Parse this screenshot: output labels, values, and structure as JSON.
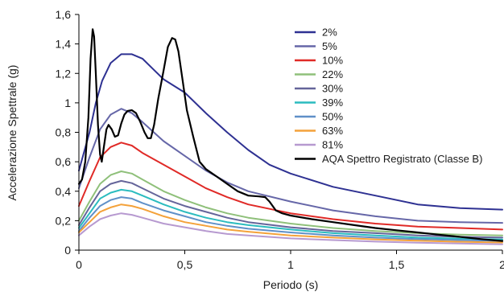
{
  "chart_data": {
    "type": "line",
    "title": "",
    "xlabel": "Periodo (s)",
    "ylabel": "Accelerazione Spettrale (g)",
    "xlim": [
      0,
      2
    ],
    "ylim": [
      0,
      1.6
    ],
    "xticks": [
      "0",
      "0,5",
      "1",
      "1,5",
      "2"
    ],
    "yticks": [
      "0",
      "0,2",
      "0,4",
      "0,6",
      "0,8",
      "1",
      "1,2",
      "1,4",
      "1,6"
    ],
    "xtick_values": [
      0,
      0.5,
      1,
      1.5,
      2
    ],
    "ytick_values": [
      0,
      0.2,
      0.4,
      0.6,
      0.8,
      1.0,
      1.2,
      1.4,
      1.6
    ],
    "grid": false,
    "legend_position": "top-right",
    "series": [
      {
        "name": "2%",
        "color": "#2e3192",
        "points": [
          [
            0,
            0.54
          ],
          [
            0.05,
            0.8
          ],
          [
            0.08,
            1.0
          ],
          [
            0.11,
            1.15
          ],
          [
            0.15,
            1.27
          ],
          [
            0.2,
            1.33
          ],
          [
            0.25,
            1.33
          ],
          [
            0.3,
            1.3
          ],
          [
            0.35,
            1.23
          ],
          [
            0.4,
            1.16
          ],
          [
            0.5,
            1.07
          ],
          [
            0.6,
            0.93
          ],
          [
            0.7,
            0.8
          ],
          [
            0.8,
            0.68
          ],
          [
            0.9,
            0.58
          ],
          [
            1.0,
            0.52
          ],
          [
            1.2,
            0.43
          ],
          [
            1.4,
            0.37
          ],
          [
            1.6,
            0.31
          ],
          [
            1.8,
            0.285
          ],
          [
            2.0,
            0.275
          ]
        ]
      },
      {
        "name": "5%",
        "color": "#6667a8",
        "points": [
          [
            0,
            0.42
          ],
          [
            0.05,
            0.63
          ],
          [
            0.1,
            0.82
          ],
          [
            0.15,
            0.92
          ],
          [
            0.2,
            0.96
          ],
          [
            0.25,
            0.93
          ],
          [
            0.3,
            0.87
          ],
          [
            0.4,
            0.74
          ],
          [
            0.5,
            0.64
          ],
          [
            0.6,
            0.54
          ],
          [
            0.7,
            0.46
          ],
          [
            0.8,
            0.4
          ],
          [
            1.0,
            0.33
          ],
          [
            1.2,
            0.27
          ],
          [
            1.4,
            0.23
          ],
          [
            1.6,
            0.2
          ],
          [
            1.8,
            0.19
          ],
          [
            2.0,
            0.185
          ]
        ]
      },
      {
        "name": "10%",
        "color": "#e02a27",
        "points": [
          [
            0,
            0.3
          ],
          [
            0.05,
            0.47
          ],
          [
            0.1,
            0.63
          ],
          [
            0.15,
            0.7
          ],
          [
            0.2,
            0.73
          ],
          [
            0.25,
            0.71
          ],
          [
            0.3,
            0.66
          ],
          [
            0.4,
            0.58
          ],
          [
            0.5,
            0.5
          ],
          [
            0.6,
            0.42
          ],
          [
            0.7,
            0.36
          ],
          [
            0.8,
            0.31
          ],
          [
            1.0,
            0.25
          ],
          [
            1.2,
            0.21
          ],
          [
            1.4,
            0.18
          ],
          [
            1.6,
            0.16
          ],
          [
            1.8,
            0.15
          ],
          [
            2.0,
            0.14
          ]
        ]
      },
      {
        "name": "22%",
        "color": "#8fc07a",
        "points": [
          [
            0,
            0.2
          ],
          [
            0.05,
            0.33
          ],
          [
            0.1,
            0.45
          ],
          [
            0.15,
            0.51
          ],
          [
            0.2,
            0.535
          ],
          [
            0.25,
            0.52
          ],
          [
            0.3,
            0.48
          ],
          [
            0.4,
            0.4
          ],
          [
            0.5,
            0.34
          ],
          [
            0.6,
            0.29
          ],
          [
            0.7,
            0.25
          ],
          [
            0.8,
            0.22
          ],
          [
            1.0,
            0.18
          ],
          [
            1.2,
            0.15
          ],
          [
            1.4,
            0.13
          ],
          [
            1.6,
            0.115
          ],
          [
            1.8,
            0.105
          ],
          [
            2.0,
            0.1
          ]
        ]
      },
      {
        "name": "30%",
        "color": "#65659a",
        "points": [
          [
            0,
            0.17
          ],
          [
            0.05,
            0.29
          ],
          [
            0.1,
            0.4
          ],
          [
            0.15,
            0.45
          ],
          [
            0.2,
            0.47
          ],
          [
            0.25,
            0.455
          ],
          [
            0.3,
            0.42
          ],
          [
            0.4,
            0.35
          ],
          [
            0.5,
            0.3
          ],
          [
            0.6,
            0.26
          ],
          [
            0.7,
            0.22
          ],
          [
            0.8,
            0.19
          ],
          [
            1.0,
            0.155
          ],
          [
            1.2,
            0.13
          ],
          [
            1.4,
            0.115
          ],
          [
            1.6,
            0.1
          ],
          [
            1.8,
            0.09
          ],
          [
            2.0,
            0.085
          ]
        ]
      },
      {
        "name": "39%",
        "color": "#2bbcbf",
        "points": [
          [
            0,
            0.15
          ],
          [
            0.05,
            0.25
          ],
          [
            0.1,
            0.35
          ],
          [
            0.15,
            0.39
          ],
          [
            0.2,
            0.41
          ],
          [
            0.25,
            0.4
          ],
          [
            0.3,
            0.37
          ],
          [
            0.4,
            0.31
          ],
          [
            0.5,
            0.26
          ],
          [
            0.6,
            0.22
          ],
          [
            0.7,
            0.19
          ],
          [
            0.8,
            0.17
          ],
          [
            1.0,
            0.14
          ],
          [
            1.2,
            0.115
          ],
          [
            1.4,
            0.1
          ],
          [
            1.6,
            0.085
          ],
          [
            1.8,
            0.078
          ],
          [
            2.0,
            0.072
          ]
        ]
      },
      {
        "name": "50%",
        "color": "#5f90c8",
        "points": [
          [
            0,
            0.13
          ],
          [
            0.05,
            0.22
          ],
          [
            0.1,
            0.3
          ],
          [
            0.15,
            0.34
          ],
          [
            0.2,
            0.36
          ],
          [
            0.25,
            0.35
          ],
          [
            0.3,
            0.32
          ],
          [
            0.4,
            0.27
          ],
          [
            0.5,
            0.23
          ],
          [
            0.6,
            0.19
          ],
          [
            0.7,
            0.165
          ],
          [
            0.8,
            0.145
          ],
          [
            1.0,
            0.12
          ],
          [
            1.2,
            0.1
          ],
          [
            1.4,
            0.085
          ],
          [
            1.6,
            0.075
          ],
          [
            1.8,
            0.068
          ],
          [
            2.0,
            0.062
          ]
        ]
      },
      {
        "name": "63%",
        "color": "#f4a23a",
        "points": [
          [
            0,
            0.12
          ],
          [
            0.05,
            0.19
          ],
          [
            0.1,
            0.26
          ],
          [
            0.15,
            0.29
          ],
          [
            0.2,
            0.31
          ],
          [
            0.25,
            0.3
          ],
          [
            0.3,
            0.28
          ],
          [
            0.4,
            0.23
          ],
          [
            0.5,
            0.19
          ],
          [
            0.6,
            0.165
          ],
          [
            0.7,
            0.14
          ],
          [
            0.8,
            0.125
          ],
          [
            1.0,
            0.1
          ],
          [
            1.2,
            0.085
          ],
          [
            1.4,
            0.073
          ],
          [
            1.6,
            0.064
          ],
          [
            1.8,
            0.057
          ],
          [
            2.0,
            0.052
          ]
        ]
      },
      {
        "name": "81%",
        "color": "#b79ad0",
        "points": [
          [
            0,
            0.1
          ],
          [
            0.05,
            0.16
          ],
          [
            0.1,
            0.21
          ],
          [
            0.15,
            0.235
          ],
          [
            0.2,
            0.25
          ],
          [
            0.25,
            0.24
          ],
          [
            0.3,
            0.22
          ],
          [
            0.4,
            0.18
          ],
          [
            0.5,
            0.155
          ],
          [
            0.6,
            0.13
          ],
          [
            0.7,
            0.11
          ],
          [
            0.8,
            0.1
          ],
          [
            1.0,
            0.08
          ],
          [
            1.2,
            0.068
          ],
          [
            1.4,
            0.058
          ],
          [
            1.6,
            0.05
          ],
          [
            1.8,
            0.045
          ],
          [
            2.0,
            0.04
          ]
        ]
      },
      {
        "name": "AQA Spettro Registrato (Classe B)",
        "color": "#000000",
        "points": [
          [
            0,
            0.45
          ],
          [
            0.015,
            0.48
          ],
          [
            0.03,
            0.6
          ],
          [
            0.045,
            0.9
          ],
          [
            0.055,
            1.3
          ],
          [
            0.065,
            1.5
          ],
          [
            0.072,
            1.45
          ],
          [
            0.08,
            1.2
          ],
          [
            0.09,
            0.85
          ],
          [
            0.1,
            0.65
          ],
          [
            0.108,
            0.6
          ],
          [
            0.118,
            0.7
          ],
          [
            0.13,
            0.82
          ],
          [
            0.14,
            0.85
          ],
          [
            0.155,
            0.82
          ],
          [
            0.17,
            0.77
          ],
          [
            0.185,
            0.78
          ],
          [
            0.2,
            0.86
          ],
          [
            0.215,
            0.92
          ],
          [
            0.23,
            0.945
          ],
          [
            0.25,
            0.95
          ],
          [
            0.27,
            0.93
          ],
          [
            0.29,
            0.87
          ],
          [
            0.31,
            0.8
          ],
          [
            0.325,
            0.76
          ],
          [
            0.34,
            0.76
          ],
          [
            0.355,
            0.85
          ],
          [
            0.375,
            1.03
          ],
          [
            0.4,
            1.22
          ],
          [
            0.42,
            1.38
          ],
          [
            0.44,
            1.44
          ],
          [
            0.455,
            1.43
          ],
          [
            0.47,
            1.35
          ],
          [
            0.49,
            1.15
          ],
          [
            0.51,
            0.95
          ],
          [
            0.54,
            0.77
          ],
          [
            0.57,
            0.6
          ],
          [
            0.6,
            0.55
          ],
          [
            0.65,
            0.5
          ],
          [
            0.7,
            0.45
          ],
          [
            0.75,
            0.4
          ],
          [
            0.8,
            0.37
          ],
          [
            0.85,
            0.365
          ],
          [
            0.88,
            0.36
          ],
          [
            0.9,
            0.33
          ],
          [
            0.93,
            0.27
          ],
          [
            0.96,
            0.25
          ],
          [
            1.0,
            0.235
          ],
          [
            1.1,
            0.21
          ],
          [
            1.2,
            0.19
          ],
          [
            1.3,
            0.17
          ],
          [
            1.4,
            0.15
          ],
          [
            1.5,
            0.135
          ],
          [
            1.6,
            0.12
          ],
          [
            1.7,
            0.105
          ],
          [
            1.8,
            0.09
          ],
          [
            1.9,
            0.075
          ],
          [
            2.0,
            0.062
          ]
        ]
      }
    ]
  }
}
